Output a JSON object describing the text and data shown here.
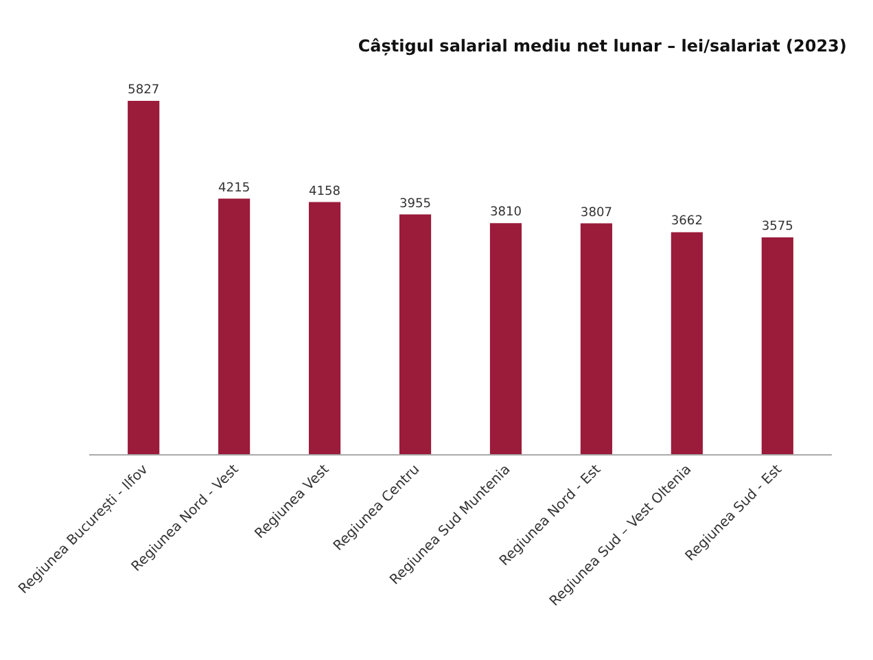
{
  "chart_data": {
    "type": "bar",
    "title": "Câștigul salarial mediu net lunar – lei/salariat (2023)",
    "categories": [
      "Regiunea București - Ilfov",
      "Regiunea Nord - Vest",
      "Regiunea Vest",
      "Regiunea Centru",
      "Regiunea Sud Muntenia",
      "Regiunea Nord - Est",
      "Regiunea Sud – Vest Oltenia",
      "Regiunea Sud - Est"
    ],
    "values": [
      5827,
      4215,
      4158,
      3955,
      3810,
      3807,
      3662,
      3575
    ],
    "color": "#9b1b3a",
    "data_labels": true
  }
}
